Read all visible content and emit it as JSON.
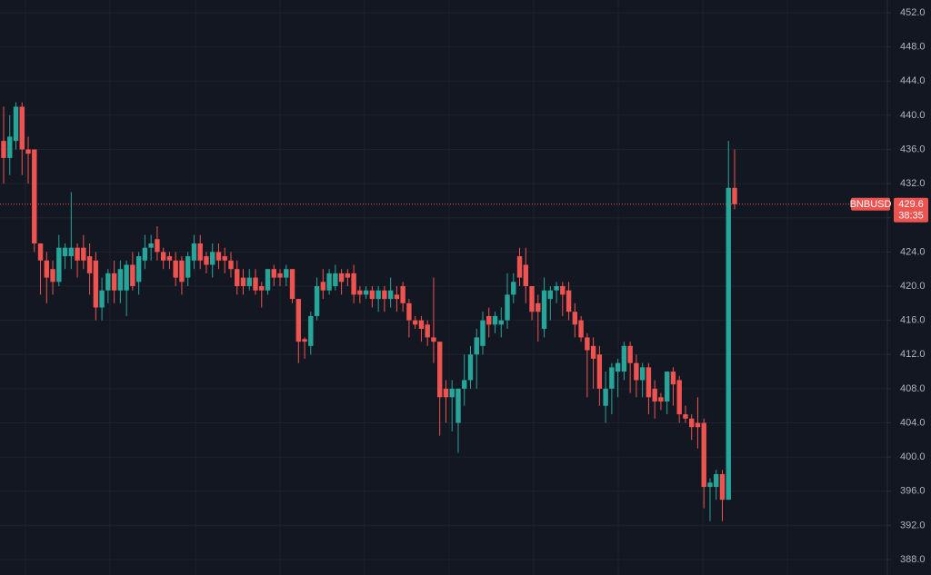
{
  "chart_data": {
    "type": "candlestick",
    "symbol": "BNBUSD",
    "last_price": 429.6,
    "countdown": "38:35",
    "up_color": "#26a69a",
    "down_color": "#ef5350",
    "grid": true,
    "ylim": [
      388,
      452
    ],
    "yticks": [
      {
        "value": 388,
        "label": "388.0"
      },
      {
        "value": 392,
        "label": "392.0"
      },
      {
        "value": 396,
        "label": "396.0"
      },
      {
        "value": 400,
        "label": "400.0"
      },
      {
        "value": 404,
        "label": "404.0"
      },
      {
        "value": 408,
        "label": "408.0"
      },
      {
        "value": 412,
        "label": "412.0"
      },
      {
        "value": 416,
        "label": "416.0"
      },
      {
        "value": 420,
        "label": "420.0"
      },
      {
        "value": 424,
        "label": "424.0"
      },
      {
        "value": 428,
        "label": "428.0"
      },
      {
        "value": 432,
        "label": "432.0"
      },
      {
        "value": 436,
        "label": "436.0"
      },
      {
        "value": 440,
        "label": "440.0"
      },
      {
        "value": 444,
        "label": "444.0"
      },
      {
        "value": 448,
        "label": "448.0"
      },
      {
        "value": 452,
        "label": "452.0"
      }
    ],
    "open": [
      437,
      435,
      437,
      441,
      436,
      436,
      425,
      423,
      422,
      420.5,
      423.5,
      423.5,
      424.5,
      424.5,
      423.5,
      423,
      417.5,
      419.5,
      421.5,
      419.5,
      419.5,
      422.5,
      420.5,
      423,
      424.5,
      425.5,
      424,
      423.5,
      423,
      423,
      421,
      423,
      425,
      423.5,
      422.5,
      424,
      423.5,
      423,
      422,
      421,
      420,
      421,
      420,
      419.5,
      422,
      421.5,
      421,
      422,
      418.5,
      413.8,
      413,
      416.5,
      420.5,
      419.5,
      420,
      421.5,
      421.5,
      421.5,
      419.5,
      419,
      419.5,
      418.5,
      419.5,
      418.5,
      419,
      420,
      418,
      416,
      416,
      415.5,
      414,
      413.5,
      408,
      407,
      404,
      408,
      409,
      412,
      413,
      416.5,
      415.5,
      415.5,
      416,
      419,
      423.5,
      422.5,
      420,
      418,
      415,
      418.5,
      419.5,
      420,
      419.5,
      417,
      416,
      414,
      413,
      412,
      406,
      408,
      410,
      410,
      413,
      411,
      409,
      410.5,
      408,
      407,
      406.5,
      410,
      409,
      405,
      404.5,
      404,
      404,
      396.5,
      396.5,
      398,
      395,
      431.5
    ],
    "high": [
      441,
      440,
      441.5,
      441.5,
      437.5,
      436,
      425,
      424,
      423,
      426,
      425,
      431,
      425,
      426,
      425,
      424,
      421,
      422,
      423,
      423,
      423,
      424,
      424,
      426,
      426,
      427,
      424.5,
      424,
      424,
      423.5,
      424,
      426,
      426,
      424,
      425,
      425,
      424.5,
      424,
      423,
      422,
      422,
      422,
      420.5,
      422,
      422.5,
      422,
      422.5,
      422,
      418.5,
      414,
      417,
      421,
      422,
      422,
      422.5,
      422,
      422,
      422.5,
      420,
      420,
      420,
      420,
      420,
      421,
      420,
      420.5,
      418.5,
      416.5,
      416.5,
      416,
      421,
      413.5,
      409,
      409,
      408,
      412,
      413,
      415,
      417,
      417.5,
      417,
      417.5,
      421.5,
      421.5,
      424.5,
      424.5,
      420,
      419,
      421,
      420,
      420.5,
      420.5,
      420.5,
      418,
      416.5,
      414.5,
      414,
      413,
      410,
      411,
      411.5,
      413.5,
      413.5,
      412,
      411,
      411,
      409,
      407.5,
      410,
      410.5,
      409.5,
      406,
      405,
      407,
      404.5,
      397.5,
      398.5,
      398.5,
      437,
      436
    ],
    "low": [
      432,
      433,
      436,
      433,
      432,
      424,
      419,
      418,
      419,
      420,
      422,
      422,
      421,
      422,
      419,
      416,
      416,
      418,
      418,
      418,
      416.5,
      419.5,
      419,
      422,
      423,
      423,
      422,
      422,
      420,
      419,
      420,
      422,
      422,
      421.5,
      421,
      422,
      421.5,
      421,
      419,
      419,
      419.5,
      419,
      417.5,
      419,
      420,
      420,
      420,
      418,
      411,
      411.5,
      412,
      416,
      418.5,
      419,
      419.5,
      419,
      420,
      418,
      418,
      418.5,
      417.5,
      417,
      417,
      417.5,
      417,
      417,
      414,
      415,
      413.5,
      413,
      411,
      402.5,
      404,
      403,
      400.5,
      406,
      408,
      408,
      412,
      414,
      414.5,
      414,
      415,
      418,
      420,
      418,
      416,
      413.5,
      414,
      416,
      418,
      416.5,
      416,
      414,
      413.5,
      407,
      408,
      406,
      404,
      405,
      407,
      409,
      407.5,
      407,
      407,
      405,
      404.5,
      405.5,
      405,
      406,
      404,
      404,
      402,
      401,
      394,
      392.5,
      395,
      392.5,
      395,
      429
    ],
    "close": [
      435,
      437.5,
      441,
      436,
      435.5,
      425,
      423,
      421,
      420.5,
      424.5,
      424.5,
      424.5,
      423,
      423,
      421.5,
      417.5,
      419.5,
      421.5,
      419.5,
      422,
      422.5,
      420,
      423.5,
      424.5,
      425,
      424,
      423,
      423,
      421,
      420.5,
      423.5,
      425,
      423,
      422.5,
      424,
      423,
      423,
      422,
      420,
      420,
      421,
      419.5,
      419.5,
      422,
      421,
      421,
      422,
      418.5,
      413.5,
      413.5,
      416.5,
      420,
      419.5,
      421.5,
      421.5,
      420.5,
      421,
      419,
      419,
      419.5,
      418.5,
      419.5,
      418.5,
      419.5,
      418.5,
      418,
      416,
      415.5,
      415,
      414,
      413.5,
      407,
      407,
      408,
      408,
      409,
      412,
      414,
      416,
      415.5,
      416.5,
      416,
      419,
      420.5,
      421,
      420,
      417,
      417,
      419.5,
      419.5,
      420,
      419,
      417,
      415.5,
      414,
      412.5,
      411.5,
      408,
      408,
      410.5,
      411,
      413,
      411,
      409,
      410.5,
      407,
      406.5,
      406.5,
      410,
      408.5,
      405,
      404.5,
      403.5,
      403.5,
      396.5,
      397,
      398,
      395,
      431.5,
      429.6
    ]
  }
}
